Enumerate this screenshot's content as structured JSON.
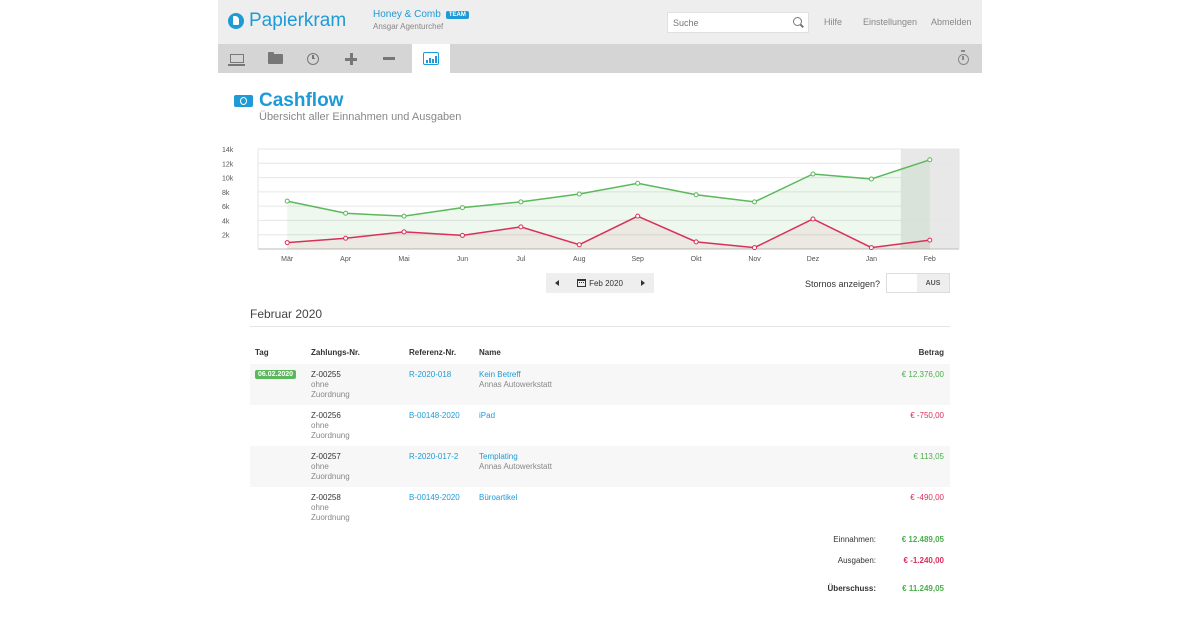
{
  "header": {
    "logo_text": "Papierkram",
    "company_name": "Honey & Comb",
    "team_badge": "TEAM",
    "company_user": "Ansgar Agenturchef",
    "search_placeholder": "Suche",
    "nav": [
      "Hilfe",
      "Einstellungen",
      "Abmelden"
    ]
  },
  "toolbar": {
    "icons": [
      "laptop-icon",
      "folder-icon",
      "clock-icon",
      "plus-icon",
      "minus-icon",
      "bar-chart-icon",
      "stopwatch-icon"
    ],
    "active": "bar-chart-icon"
  },
  "page": {
    "title": "Cashflow",
    "subtitle": "Übersicht aller Einnahmen und Ausgaben"
  },
  "chart_data": {
    "type": "line",
    "categories": [
      "Mär",
      "Apr",
      "Mai",
      "Jun",
      "Jul",
      "Aug",
      "Sep",
      "Okt",
      "Nov",
      "Dez",
      "Jan",
      "Feb"
    ],
    "y_ticks": [
      "2k",
      "4k",
      "6k",
      "8k",
      "10k",
      "12k",
      "14k"
    ],
    "ylim": [
      0,
      14000
    ],
    "grid": true,
    "highlighted_category": "Feb",
    "series": [
      {
        "values": [
          6700,
          5000,
          4600,
          5800,
          6600,
          7700,
          9200,
          7600,
          6600,
          10500,
          9800,
          12489
        ],
        "color": "#5cb85c"
      },
      {
        "values": [
          900,
          1500,
          2400,
          1900,
          3100,
          600,
          4600,
          1000,
          200,
          4200,
          200,
          1240
        ],
        "color": "#d9305a"
      }
    ]
  },
  "month_nav": {
    "label": "Feb 2020"
  },
  "storno": {
    "label": "Stornos anzeigen?",
    "state": "AUS"
  },
  "month_heading": "Februar 2020",
  "table": {
    "headers": {
      "tag": "Tag",
      "zahlung": "Zahlungs-Nr.",
      "referenz": "Referenz-Nr.",
      "name": "Name",
      "betrag": "Betrag"
    },
    "rows": [
      {
        "tag": "06.02.2020",
        "zahlung": "Z-00255",
        "zuordnung1": "ohne",
        "zuordnung2": "Zuordnung",
        "referenz": "R-2020-018",
        "name": "Kein Betreff",
        "name_sub": "Annas Autowerkstatt",
        "betrag": "€ 12.376,00"
      },
      {
        "tag": "",
        "zahlung": "Z-00256",
        "zuordnung1": "ohne",
        "zuordnung2": "Zuordnung",
        "referenz": "B-00148-2020",
        "name": "iPad",
        "name_sub": "",
        "betrag": "€ -750,00"
      },
      {
        "tag": "",
        "zahlung": "Z-00257",
        "zuordnung1": "ohne",
        "zuordnung2": "Zuordnung",
        "referenz": "R-2020-017-2",
        "name": "Templating",
        "name_sub": "Annas Autowerkstatt",
        "betrag": "€ 113,05"
      },
      {
        "tag": "",
        "zahlung": "Z-00258",
        "zuordnung1": "ohne",
        "zuordnung2": "Zuordnung",
        "referenz": "B-00149-2020",
        "name": "Büroartikel",
        "name_sub": "",
        "betrag": "€ -490,00"
      }
    ]
  },
  "summary": {
    "einnahmen_label": "Einnahmen:",
    "einnahmen": "€ 12.489,05",
    "ausgaben_label": "Ausgaben:",
    "ausgaben": "€ -1.240,00",
    "ueberschuss_label": "Überschuss:",
    "ueberschuss": "€ 11.249,05"
  },
  "colors": {
    "accent": "#1e9bd7",
    "positive": "#4cae4c",
    "negative": "#d9305a"
  }
}
